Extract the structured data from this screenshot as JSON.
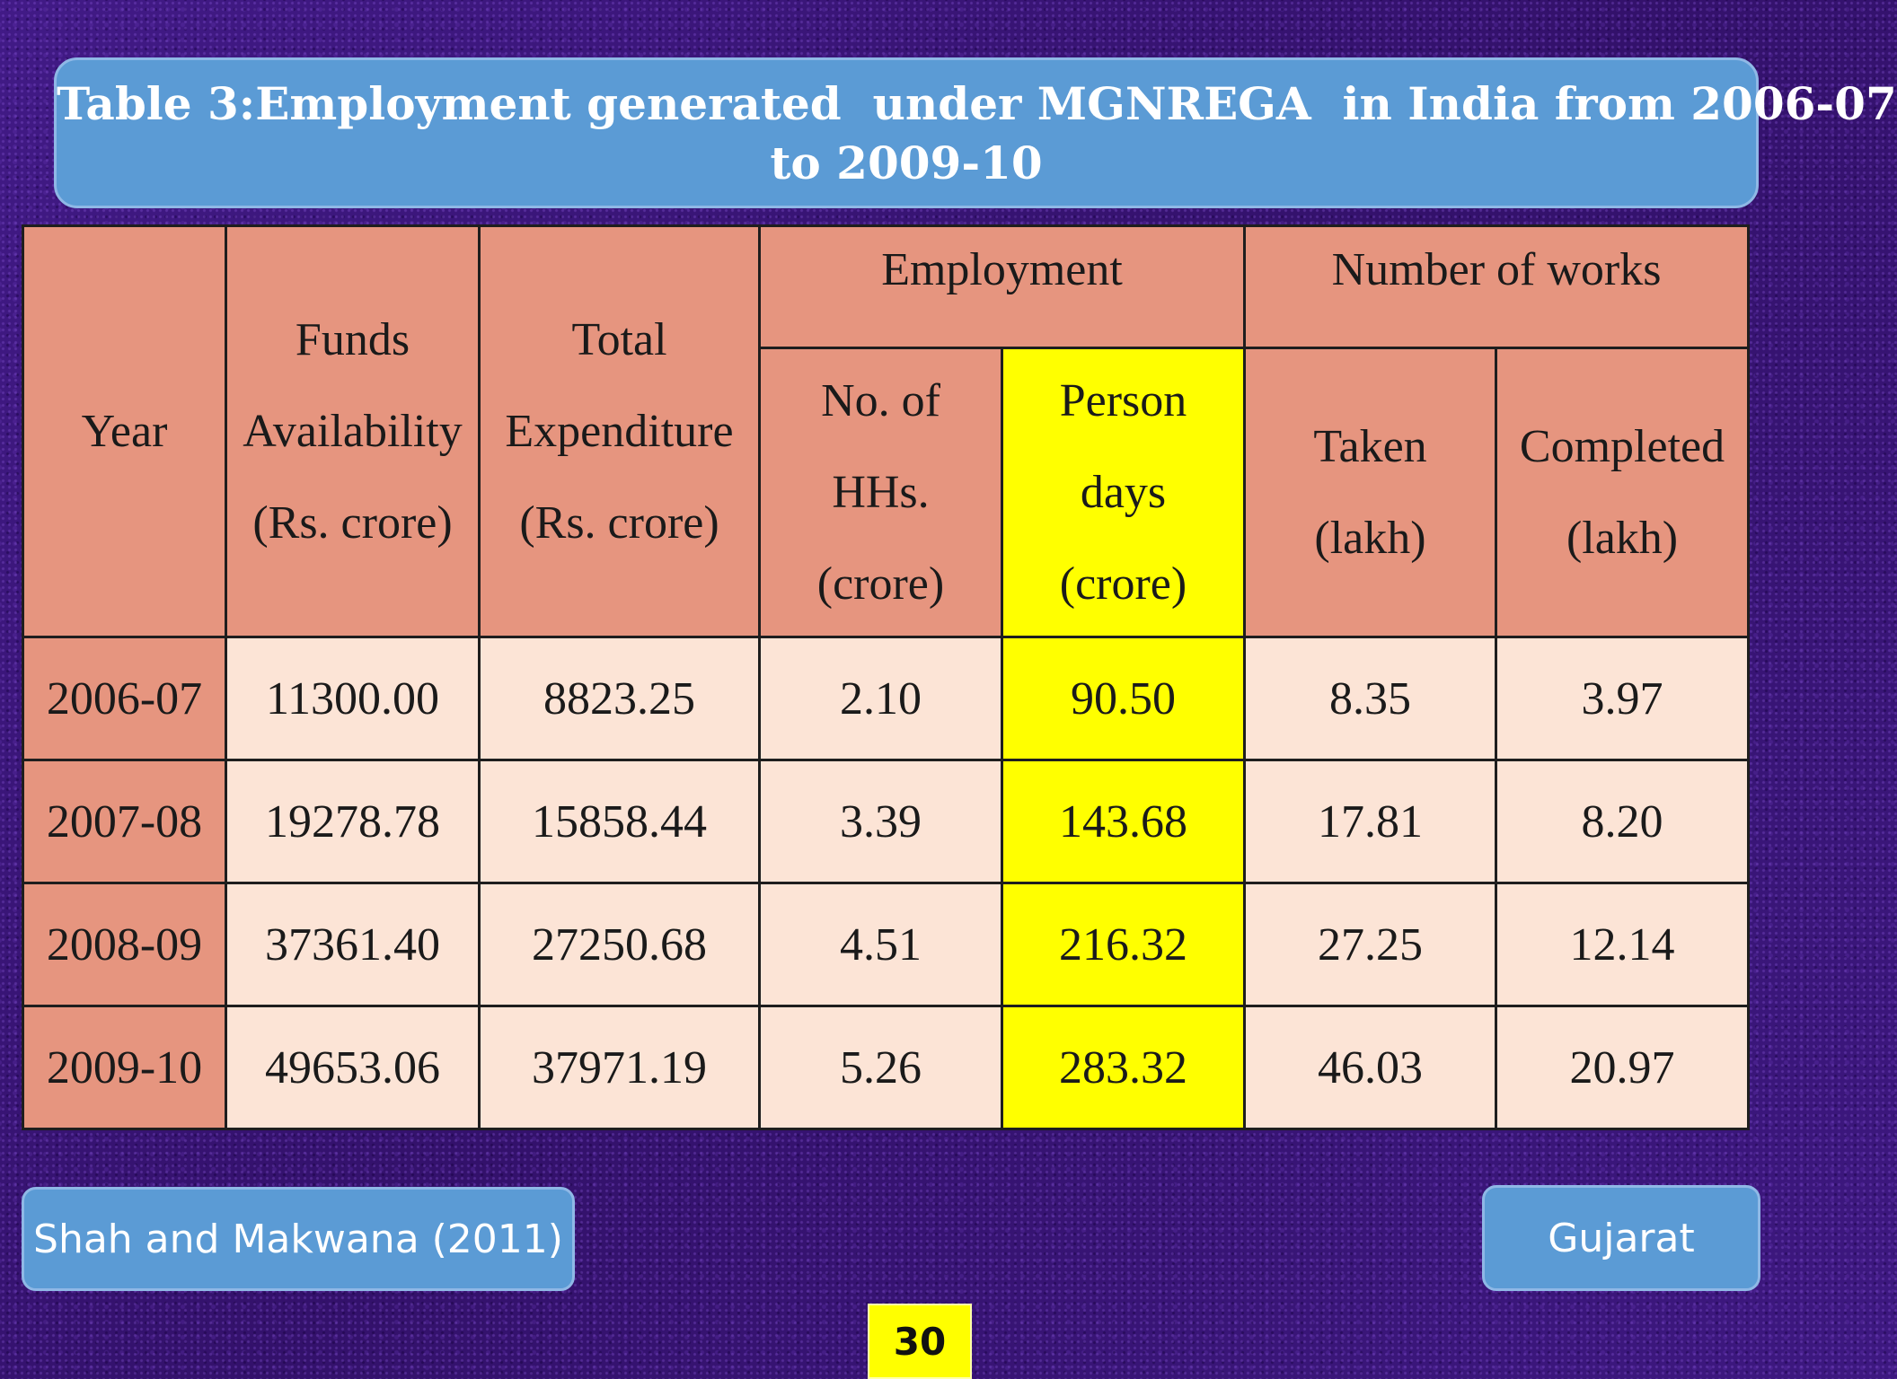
{
  "title": {
    "line1": "Table 3:Employment generated  under MGNREGA  in India from 2006-07",
    "line2": "to 2009-10"
  },
  "table": {
    "headers": {
      "year": "Year",
      "funds": [
        "Funds",
        "Availability",
        "(Rs. crore)"
      ],
      "expenditure": [
        "Total",
        "Expenditure",
        "(Rs. crore)"
      ],
      "employment": "Employment",
      "works": "Number of works",
      "hhs": [
        "No. of",
        "HHs.",
        "(crore)"
      ],
      "person_days": [
        "Person",
        "days",
        "(crore)"
      ],
      "taken": [
        "Taken",
        "(lakh)"
      ],
      "completed": [
        "Completed",
        "(lakh)"
      ]
    },
    "rows": [
      {
        "year": "2006-07",
        "funds": "11300.00",
        "expenditure": "8823.25",
        "hhs": "2.10",
        "person_days": "90.50",
        "taken": "8.35",
        "completed": "3.97"
      },
      {
        "year": "2007-08",
        "funds": "19278.78",
        "expenditure": "15858.44",
        "hhs": "3.39",
        "person_days": "143.68",
        "taken": "17.81",
        "completed": "8.20"
      },
      {
        "year": "2008-09",
        "funds": "37361.40",
        "expenditure": "27250.68",
        "hhs": "4.51",
        "person_days": "216.32",
        "taken": "27.25",
        "completed": "12.14"
      },
      {
        "year": "2009-10",
        "funds": "49653.06",
        "expenditure": "37971.19",
        "hhs": "5.26",
        "person_days": "283.32",
        "taken": "46.03",
        "completed": "20.97"
      }
    ]
  },
  "footer": {
    "source": "Shah and Makwana (2011)",
    "state": "Gujarat",
    "page_number": "30"
  },
  "colors": {
    "background": "#3a1577",
    "title_box": "#5b9bd5",
    "header_cell": "#e6957f",
    "data_cell": "#fce4d6",
    "highlight": "#ffff00"
  }
}
